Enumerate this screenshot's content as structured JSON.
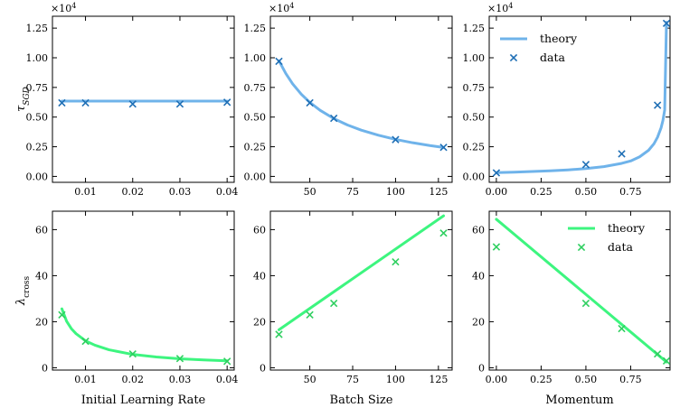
{
  "colors": {
    "blue": "#6fb3ea",
    "blue_marker": "#1f6fb5",
    "green": "#3df57f",
    "green_marker": "#2fcf60"
  },
  "chart_data": [
    {
      "id": "lr_tau",
      "type": "line+scatter",
      "row": "tau",
      "title": "",
      "xlabel": "",
      "ylabel": "τ_SGD",
      "y_exponent": "×10^4",
      "xlim": [
        0.003,
        0.0415
      ],
      "ylim": [
        -0.05,
        1.35
      ],
      "xticks": [
        0.01,
        0.02,
        0.03,
        0.04
      ],
      "xtick_labels": [
        "0.01",
        "0.02",
        "0.03",
        "0.04"
      ],
      "yticks": [
        0,
        0.25,
        0.5,
        0.75,
        1.0,
        1.25
      ],
      "ytick_labels": [
        "0.00",
        "0.25",
        "0.50",
        "0.75",
        "1.00",
        "1.25"
      ],
      "theory": {
        "name": "theory",
        "x": [
          0.005,
          0.04
        ],
        "y": [
          0.635,
          0.635
        ]
      },
      "data": {
        "name": "data",
        "x": [
          0.005,
          0.01,
          0.02,
          0.03,
          0.04
        ],
        "y": [
          0.62,
          0.62,
          0.61,
          0.61,
          0.625
        ]
      }
    },
    {
      "id": "bs_tau",
      "type": "line+scatter",
      "row": "tau",
      "title": "",
      "xlabel": "",
      "ylabel": "",
      "y_exponent": "×10^4",
      "xlim": [
        27,
        133
      ],
      "ylim": [
        -0.05,
        1.35
      ],
      "xticks": [
        50,
        75,
        100,
        125
      ],
      "xtick_labels": [
        "50",
        "75",
        "100",
        "125"
      ],
      "yticks": [
        0,
        0.25,
        0.5,
        0.75,
        1.0,
        1.25
      ],
      "ytick_labels": [
        "0.00",
        "0.25",
        "0.50",
        "0.75",
        "1.00",
        "1.25"
      ],
      "theory": {
        "name": "theory",
        "x": [
          32,
          36,
          40,
          45,
          50,
          56,
          64,
          72,
          80,
          90,
          100,
          110,
          120,
          128
        ],
        "y": [
          0.975,
          0.867,
          0.78,
          0.693,
          0.624,
          0.557,
          0.4875,
          0.433,
          0.39,
          0.347,
          0.312,
          0.2836,
          0.26,
          0.244
        ]
      },
      "data": {
        "name": "data",
        "x": [
          32,
          50,
          64,
          100,
          128
        ],
        "y": [
          0.97,
          0.62,
          0.49,
          0.31,
          0.245
        ]
      }
    },
    {
      "id": "mom_tau",
      "type": "line+scatter",
      "row": "tau",
      "title": "",
      "xlabel": "",
      "ylabel": "",
      "y_exponent": "×10^4",
      "xlim": [
        -0.04,
        0.97
      ],
      "ylim": [
        -0.05,
        1.35
      ],
      "xticks": [
        0,
        0.25,
        0.5,
        0.75
      ],
      "xtick_labels": [
        "0.00",
        "0.25",
        "0.50",
        "0.75"
      ],
      "yticks": [
        0,
        0.25,
        0.5,
        0.75,
        1.0,
        1.25
      ],
      "ytick_labels": [
        "0.00",
        "0.25",
        "0.50",
        "0.75",
        "1.00",
        "1.25"
      ],
      "legend": {
        "position": "top-left",
        "entries": [
          "theory",
          "data"
        ]
      },
      "theory": {
        "name": "theory",
        "x": [
          0,
          0.1,
          0.2,
          0.3,
          0.4,
          0.5,
          0.6,
          0.7,
          0.75,
          0.8,
          0.85,
          0.88,
          0.9,
          0.92,
          0.93,
          0.94,
          0.95
        ],
        "y": [
          0.032,
          0.036,
          0.041,
          0.047,
          0.055,
          0.066,
          0.082,
          0.11,
          0.13,
          0.165,
          0.22,
          0.275,
          0.33,
          0.41,
          0.47,
          0.56,
          1.3
        ]
      },
      "data": {
        "name": "data",
        "x": [
          0,
          0.5,
          0.7,
          0.9,
          0.95
        ],
        "y": [
          0.03,
          0.1,
          0.19,
          0.6,
          1.29
        ]
      }
    },
    {
      "id": "lr_lambda",
      "type": "line+scatter",
      "row": "lambda",
      "title": "",
      "xlabel": "Initial Learning Rate",
      "ylabel": "λ_cross",
      "xlim": [
        0.003,
        0.0415
      ],
      "ylim": [
        -1,
        68
      ],
      "xticks": [
        0.01,
        0.02,
        0.03,
        0.04
      ],
      "xtick_labels": [
        "0.01",
        "0.02",
        "0.03",
        "0.04"
      ],
      "yticks": [
        0,
        20,
        40,
        60
      ],
      "ytick_labels": [
        "0",
        "20",
        "40",
        "60"
      ],
      "theory": {
        "name": "theory",
        "x": [
          0.005,
          0.006,
          0.007,
          0.008,
          0.01,
          0.012,
          0.015,
          0.02,
          0.025,
          0.03,
          0.035,
          0.04
        ],
        "y": [
          25.6,
          20.2,
          17.0,
          14.8,
          11.7,
          9.8,
          7.8,
          5.8,
          4.7,
          3.9,
          3.4,
          3.0
        ]
      },
      "data": {
        "name": "data",
        "x": [
          0.005,
          0.01,
          0.02,
          0.03,
          0.04
        ],
        "y": [
          23,
          11.5,
          6,
          4,
          2.8
        ]
      }
    },
    {
      "id": "bs_lambda",
      "type": "line+scatter",
      "row": "lambda",
      "title": "",
      "xlabel": "Batch Size",
      "ylabel": "",
      "xlim": [
        27,
        133
      ],
      "ylim": [
        -1,
        68
      ],
      "xticks": [
        50,
        75,
        100,
        125
      ],
      "xtick_labels": [
        "50",
        "75",
        "100",
        "125"
      ],
      "yticks": [
        0,
        20,
        40,
        60
      ],
      "ytick_labels": [
        "0",
        "20",
        "40",
        "60"
      ],
      "theory": {
        "name": "theory",
        "x": [
          32,
          128
        ],
        "y": [
          16.5,
          66
        ]
      },
      "data": {
        "name": "data",
        "x": [
          32,
          50,
          64,
          100,
          128
        ],
        "y": [
          14.5,
          23,
          28,
          46,
          58.5
        ]
      }
    },
    {
      "id": "mom_lambda",
      "type": "line+scatter",
      "row": "lambda",
      "title": "",
      "xlabel": "Momentum",
      "ylabel": "",
      "xlim": [
        -0.04,
        0.97
      ],
      "ylim": [
        -1,
        68
      ],
      "xticks": [
        0,
        0.25,
        0.5,
        0.75
      ],
      "xtick_labels": [
        "0.00",
        "0.25",
        "0.50",
        "0.75"
      ],
      "yticks": [
        0,
        20,
        40,
        60
      ],
      "ytick_labels": [
        "0",
        "20",
        "40",
        "60"
      ],
      "legend": {
        "position": "top-right",
        "entries": [
          "theory",
          "data"
        ]
      },
      "theory": {
        "name": "theory",
        "x": [
          0,
          0.95
        ],
        "y": [
          64.5,
          2.5
        ]
      },
      "data": {
        "name": "data",
        "x": [
          0,
          0.5,
          0.7,
          0.9,
          0.95
        ],
        "y": [
          52.5,
          28,
          17,
          6,
          3
        ]
      }
    }
  ]
}
